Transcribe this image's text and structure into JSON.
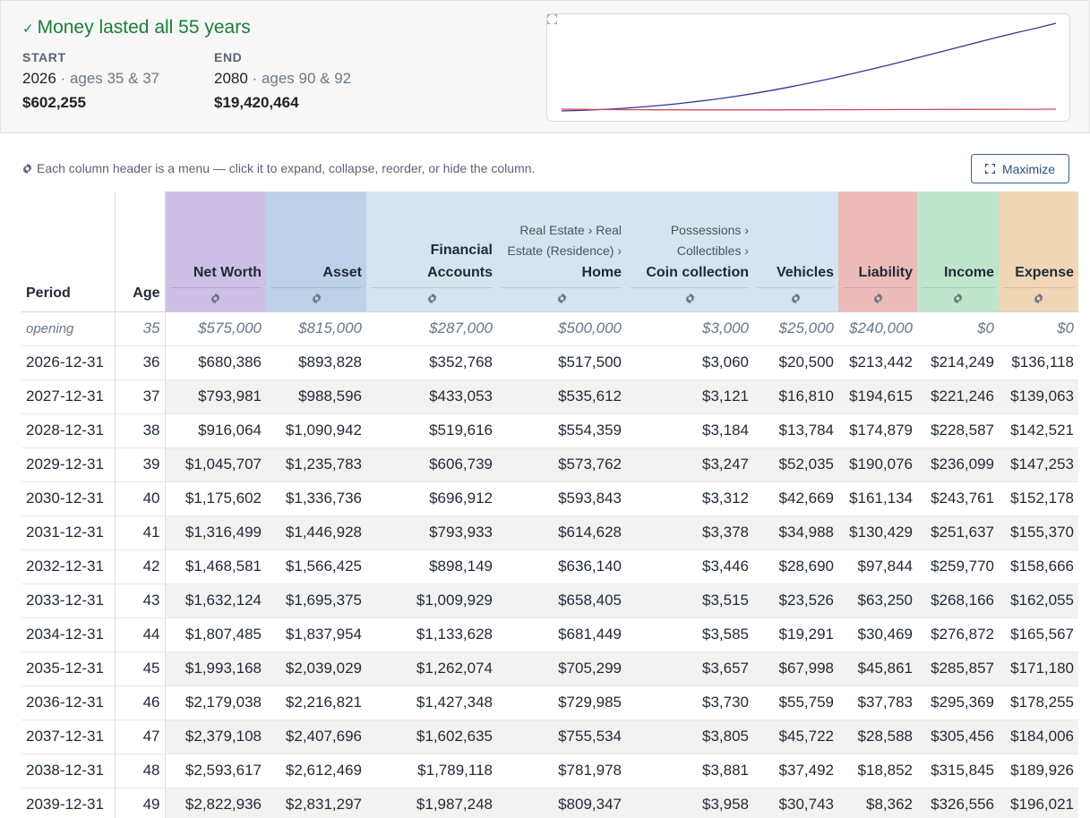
{
  "summary": {
    "headline": "Money lasted all 55 years",
    "start": {
      "label": "START",
      "year": "2026",
      "ages": "ages 35 & 37",
      "value": "$602,255"
    },
    "end": {
      "label": "END",
      "year": "2080",
      "ages": "ages 90 & 92",
      "value": "$19,420,464"
    },
    "sparkline": {
      "series": [
        {
          "color": "#2b3a9c",
          "values": [
            0,
            0.6,
            1.5,
            2.7,
            4.2,
            6.0,
            8.1,
            10.5,
            13.2,
            16.2,
            19.6,
            23.3,
            27.3,
            31.6,
            36.2,
            41.0,
            46.1,
            51.3,
            56.7,
            62.2,
            67.8,
            73.4,
            79.0,
            84.5,
            89.7,
            94.7,
            100
          ]
        },
        {
          "color": "#d0485c",
          "values": [
            2,
            1.8,
            1.6,
            1.5,
            1.4,
            1.3,
            1.3,
            1.2,
            1.2,
            1.2,
            1.2,
            1.2,
            1.3,
            1.3,
            1.4,
            1.4,
            1.5,
            1.5,
            1.6,
            1.6,
            1.7,
            1.7,
            1.8,
            1.8,
            1.9,
            1.9,
            2.0
          ]
        }
      ]
    }
  },
  "toolbar": {
    "tip": "Each column header is a menu — click it to expand, collapse, reorder, or hide the column.",
    "maximize_label": "Maximize"
  },
  "table": {
    "columns": {
      "period": "Period",
      "age": "Age",
      "net_worth": "Net Worth",
      "asset": "Asset",
      "financial": "Financial Accounts",
      "home_path": "Real Estate › Real Estate (Residence) ›",
      "home": "Home",
      "coin_path": "Possessions › Collectibles ›",
      "coin": "Coin collection",
      "vehicles": "Vehicles",
      "liability": "Liability",
      "income": "Income",
      "expense": "Expense"
    },
    "opening": [
      "opening",
      "35",
      "$575,000",
      "$815,000",
      "$287,000",
      "$500,000",
      "$3,000",
      "$25,000",
      "$240,000",
      "$0",
      "$0"
    ],
    "rows": [
      [
        "2026-12-31",
        "36",
        "$680,386",
        "$893,828",
        "$352,768",
        "$517,500",
        "$3,060",
        "$20,500",
        "$213,442",
        "$214,249",
        "$136,118"
      ],
      [
        "2027-12-31",
        "37",
        "$793,981",
        "$988,596",
        "$433,053",
        "$535,612",
        "$3,121",
        "$16,810",
        "$194,615",
        "$221,246",
        "$139,063"
      ],
      [
        "2028-12-31",
        "38",
        "$916,064",
        "$1,090,942",
        "$519,616",
        "$554,359",
        "$3,184",
        "$13,784",
        "$174,879",
        "$228,587",
        "$142,521"
      ],
      [
        "2029-12-31",
        "39",
        "$1,045,707",
        "$1,235,783",
        "$606,739",
        "$573,762",
        "$3,247",
        "$52,035",
        "$190,076",
        "$236,099",
        "$147,253"
      ],
      [
        "2030-12-31",
        "40",
        "$1,175,602",
        "$1,336,736",
        "$696,912",
        "$593,843",
        "$3,312",
        "$42,669",
        "$161,134",
        "$243,761",
        "$152,178"
      ],
      [
        "2031-12-31",
        "41",
        "$1,316,499",
        "$1,446,928",
        "$793,933",
        "$614,628",
        "$3,378",
        "$34,988",
        "$130,429",
        "$251,637",
        "$155,370"
      ],
      [
        "2032-12-31",
        "42",
        "$1,468,581",
        "$1,566,425",
        "$898,149",
        "$636,140",
        "$3,446",
        "$28,690",
        "$97,844",
        "$259,770",
        "$158,666"
      ],
      [
        "2033-12-31",
        "43",
        "$1,632,124",
        "$1,695,375",
        "$1,009,929",
        "$658,405",
        "$3,515",
        "$23,526",
        "$63,250",
        "$268,166",
        "$162,055"
      ],
      [
        "2034-12-31",
        "44",
        "$1,807,485",
        "$1,837,954",
        "$1,133,628",
        "$681,449",
        "$3,585",
        "$19,291",
        "$30,469",
        "$276,872",
        "$165,567"
      ],
      [
        "2035-12-31",
        "45",
        "$1,993,168",
        "$2,039,029",
        "$1,262,074",
        "$705,299",
        "$3,657",
        "$67,998",
        "$45,861",
        "$285,857",
        "$171,180"
      ],
      [
        "2036-12-31",
        "46",
        "$2,179,038",
        "$2,216,821",
        "$1,427,348",
        "$729,985",
        "$3,730",
        "$55,759",
        "$37,783",
        "$295,369",
        "$178,255"
      ],
      [
        "2037-12-31",
        "47",
        "$2,379,108",
        "$2,407,696",
        "$1,602,635",
        "$755,534",
        "$3,805",
        "$45,722",
        "$28,588",
        "$305,456",
        "$184,006"
      ],
      [
        "2038-12-31",
        "48",
        "$2,593,617",
        "$2,612,469",
        "$1,789,118",
        "$781,978",
        "$3,881",
        "$37,492",
        "$18,852",
        "$315,845",
        "$189,926"
      ],
      [
        "2039-12-31",
        "49",
        "$2,822,936",
        "$2,831,297",
        "$1,987,248",
        "$809,347",
        "$3,958",
        "$30,743",
        "$8,362",
        "$326,556",
        "$196,021"
      ]
    ]
  }
}
